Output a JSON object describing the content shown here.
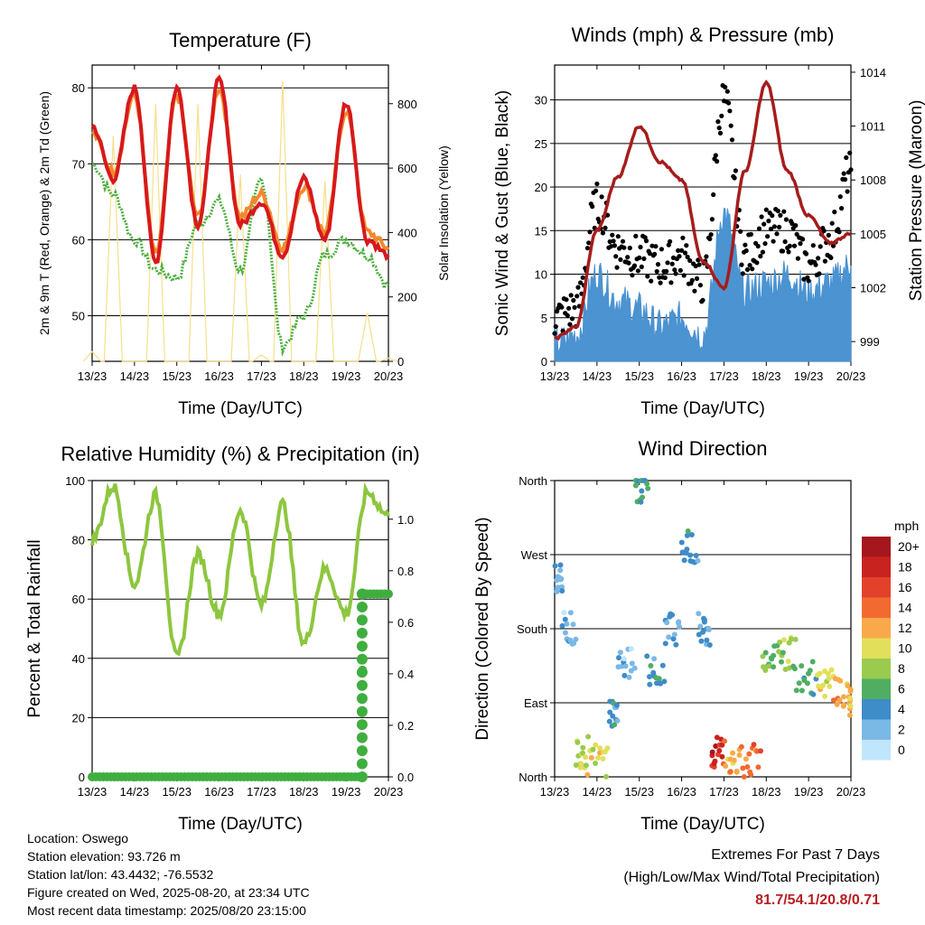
{
  "panels": {
    "temperature": {
      "title": "Temperature (F)",
      "ylabel_left": "2m & 9m T (Red, Orange) & 2m Td (Green)",
      "ylabel_right": "Solar Insolation (Yellow)",
      "xlabel": "Time (Day/UTC)",
      "left_ticks": [
        "50",
        "60",
        "70",
        "80"
      ],
      "right_ticks": [
        "0",
        "200",
        "400",
        "600",
        "800"
      ]
    },
    "winds": {
      "title": "Winds (mph) & Pressure (mb)",
      "ylabel_left": "Sonic Wind & Gust (Blue, Black)",
      "ylabel_right": "Station Pressure (Maroon)",
      "xlabel": "Time (Day/UTC)",
      "left_ticks": [
        "0",
        "5",
        "10",
        "15",
        "20",
        "25",
        "30"
      ],
      "right_ticks": [
        "999",
        "1002",
        "1005",
        "1008",
        "1011",
        "1014"
      ]
    },
    "humidity": {
      "title": "Relative Humidity (%) & Precipitation (in)",
      "ylabel_left": "Percent & Total Rainfall",
      "xlabel": "Time (Day/UTC)",
      "left_ticks": [
        "0",
        "20",
        "40",
        "60",
        "80",
        "100"
      ],
      "right_ticks": [
        "0.0",
        "0.2",
        "0.4",
        "0.6",
        "0.8",
        "1.0"
      ]
    },
    "direction": {
      "title": "Wind Direction",
      "ylabel_left": "Direction (Colored By Speed)",
      "xlabel": "Time (Day/UTC)",
      "left_ticks": [
        "North",
        "East",
        "South",
        "West",
        "North"
      ]
    }
  },
  "x_ticks": [
    "13/23",
    "14/23",
    "15/23",
    "16/23",
    "17/23",
    "18/23",
    "19/23",
    "20/23"
  ],
  "legend": {
    "title": "mph",
    "labels": [
      "20+",
      "18",
      "16",
      "14",
      "12",
      "10",
      "8",
      "6",
      "4",
      "2",
      "0"
    ],
    "colors": [
      "#a5161d",
      "#c8231f",
      "#e4412b",
      "#f26a30",
      "#f9a94a",
      "#e2df5b",
      "#9acb4f",
      "#4fae62",
      "#3e8cc8",
      "#7ab8e6",
      "#bfe6fb"
    ]
  },
  "info": {
    "location": "Location: Oswego",
    "elevation": "Station elevation: 93.726 m",
    "latlon": "Station lat/lon: 43.4432; -76.5532",
    "created": "Figure created on Wed, 2025-08-20, at 23:34 UTC",
    "recent": "Most recent data timestamp: 2025/08/20 23:15:00"
  },
  "extremes": {
    "line1": "Extremes For Past 7 Days",
    "line2": "(High/Low/Max Wind/Total Precipitation)",
    "values": "81.7/54.1/20.8/0.71"
  },
  "colors": {
    "temp_2m": "#d7191c",
    "temp_9m": "#f4892c",
    "dewpoint": "#4caf3f",
    "solar": "#f6e08a",
    "wind": "#4b93d1",
    "gust": "#000000",
    "pressure": "#a61c1c",
    "rh": "#8dc63f",
    "precip": "#3fae3f"
  },
  "chart_data": [
    {
      "type": "line",
      "title": "Temperature (F)",
      "xlabel": "Time (Day/UTC)",
      "ylabel": "2m & 9m T (Red, Orange) & 2m Td (Green)",
      "ylabel_right": "Solar Insolation (Yellow)",
      "x": [
        13,
        13.5,
        14,
        14.5,
        15,
        15.5,
        16,
        16.5,
        17,
        17.5,
        18,
        18.5,
        19,
        19.5,
        20
      ],
      "ylim": [
        44,
        83
      ],
      "ylim_right": [
        0,
        920
      ],
      "series": [
        {
          "name": "2m T",
          "values": [
            75,
            68,
            80,
            57,
            80,
            62,
            81,
            62,
            65,
            58,
            68,
            60,
            78,
            60,
            58
          ]
        },
        {
          "name": "9m T",
          "values": [
            74,
            69,
            79,
            58,
            79,
            63,
            80,
            63,
            66,
            59,
            67,
            61,
            77,
            61,
            59
          ]
        },
        {
          "name": "2m Td",
          "values": [
            70,
            66,
            60,
            56,
            55,
            62,
            65,
            56,
            68,
            46,
            50,
            58,
            60,
            58,
            54
          ]
        },
        {
          "name": "Solar Insolation",
          "axis": "right",
          "values": [
            30,
            700,
            0,
            800,
            0,
            800,
            0,
            580,
            20,
            870,
            0,
            560,
            0,
            150,
            10
          ]
        }
      ]
    },
    {
      "type": "line",
      "title": "Winds (mph) & Pressure (mb)",
      "xlabel": "Time (Day/UTC)",
      "ylabel": "Sonic Wind & Gust (Blue, Black)",
      "ylabel_right": "Station Pressure (Maroon)",
      "x": [
        13,
        13.5,
        14,
        14.5,
        15,
        15.5,
        16,
        16.5,
        17,
        17.5,
        18,
        18.5,
        19,
        19.5,
        20
      ],
      "ylim": [
        0,
        34
      ],
      "ylim_right": [
        997.9,
        1014.4
      ],
      "series": [
        {
          "name": "Sonic Wind",
          "values": [
            2,
            3,
            10,
            7,
            6,
            4,
            5,
            3,
            17,
            8,
            9,
            10,
            8,
            9,
            11
          ]
        },
        {
          "name": "Gust",
          "values": [
            5,
            6,
            18,
            13,
            12,
            11,
            12,
            9,
            30,
            12,
            15,
            15,
            11,
            14,
            22
          ]
        },
        {
          "name": "Station Pressure",
          "axis": "right",
          "values": [
            999.2,
            999.8,
            1005.2,
            1008.2,
            1011.0,
            1009.0,
            1008.0,
            1003.5,
            1002.0,
            1008.5,
            1013.4,
            1008.5,
            1006.0,
            1004.5,
            1005.0
          ]
        }
      ]
    },
    {
      "type": "line",
      "title": "Relative Humidity (%) & Precipitation (in)",
      "xlabel": "Time (Day/UTC)",
      "ylabel": "Percent & Total Rainfall",
      "x": [
        13,
        13.5,
        14,
        14.5,
        15,
        15.5,
        16,
        16.5,
        17,
        17.5,
        18,
        18.5,
        19,
        19.5,
        20
      ],
      "ylim": [
        0,
        100
      ],
      "ylim_right": [
        0,
        1.15
      ],
      "series": [
        {
          "name": "Relative Humidity",
          "values": [
            80,
            98,
            65,
            95,
            40,
            75,
            55,
            90,
            58,
            92,
            45,
            70,
            55,
            96,
            88
          ]
        },
        {
          "name": "Total Precipitation",
          "axis": "right",
          "values": [
            0,
            0,
            0,
            0,
            0,
            0,
            0,
            0,
            0,
            0,
            0,
            0,
            0.0,
            0.71,
            0.71
          ]
        }
      ]
    },
    {
      "type": "scatter",
      "title": "Wind Direction",
      "xlabel": "Time (Day/UTC)",
      "ylabel": "Direction (Colored By Speed)",
      "yticks": [
        "North",
        "East",
        "South",
        "West",
        "North"
      ],
      "ylim": [
        0,
        360
      ],
      "legend": "right",
      "points": [
        {
          "x": 13.0,
          "dir": 240,
          "speed": 3
        },
        {
          "x": 13.2,
          "dir": 180,
          "speed": 2
        },
        {
          "x": 13.5,
          "dir": 30,
          "speed": 9
        },
        {
          "x": 13.8,
          "dir": 20,
          "speed": 10
        },
        {
          "x": 14.3,
          "dir": 80,
          "speed": 4
        },
        {
          "x": 14.5,
          "dir": 140,
          "speed": 2
        },
        {
          "x": 14.9,
          "dir": 350,
          "speed": 5
        },
        {
          "x": 15.2,
          "dir": 130,
          "speed": 4
        },
        {
          "x": 15.6,
          "dir": 180,
          "speed": 3
        },
        {
          "x": 16.0,
          "dir": 280,
          "speed": 4
        },
        {
          "x": 16.4,
          "dir": 180,
          "speed": 3
        },
        {
          "x": 16.7,
          "dir": 30,
          "speed": 18
        },
        {
          "x": 17.0,
          "dir": 25,
          "speed": 12
        },
        {
          "x": 17.4,
          "dir": 20,
          "speed": 14
        },
        {
          "x": 17.9,
          "dir": 140,
          "speed": 7
        },
        {
          "x": 18.3,
          "dir": 150,
          "speed": 8
        },
        {
          "x": 18.7,
          "dir": 120,
          "speed": 6
        },
        {
          "x": 19.2,
          "dir": 110,
          "speed": 10
        },
        {
          "x": 19.6,
          "dir": 100,
          "speed": 12
        },
        {
          "x": 20.0,
          "dir": 90,
          "speed": 11
        }
      ]
    }
  ]
}
